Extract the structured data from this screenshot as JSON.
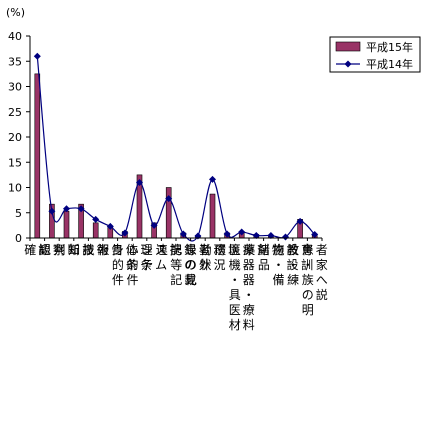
{
  "chart_data": {
    "type": "bar",
    "ylabel": "(%)",
    "ylim": [
      0,
      40
    ],
    "yticks": [
      0,
      5,
      10,
      15,
      20,
      25,
      30,
      35,
      40
    ],
    "grid": false,
    "legend_position": "top-right",
    "categories": [
      "確認",
      "観察",
      "判断",
      "知識",
      "技術",
      "報告",
      "身体的条件",
      "心理的条件",
      "システム",
      "連携",
      "記録等の記載",
      "患者の外見",
      "勤務状況",
      "環境",
      "医療機器・器具・医療材料",
      "薬剤",
      "諸物品",
      "施設・設備",
      "教育・訓練",
      "患者・家族への説明"
    ],
    "series": [
      {
        "name": "平成15年",
        "kind": "bar",
        "values": [
          32.5,
          6.7,
          5.3,
          6.7,
          3.0,
          2.2,
          1.3,
          12.5,
          3.0,
          10.0,
          1.0,
          0.5,
          8.7,
          1.0,
          1.3,
          0.7,
          0.5,
          0.2,
          3.7,
          0.8
        ]
      },
      {
        "name": "平成14年",
        "kind": "line",
        "values": [
          36.0,
          5.3,
          5.8,
          5.8,
          3.7,
          2.3,
          1.0,
          11.0,
          2.5,
          7.8,
          0.8,
          0.4,
          11.6,
          0.8,
          1.2,
          0.5,
          0.5,
          0.2,
          3.3,
          0.7
        ]
      }
    ],
    "colors": {
      "bar_fill": "#993366",
      "line": "#000080",
      "axis": "#000000"
    }
  }
}
